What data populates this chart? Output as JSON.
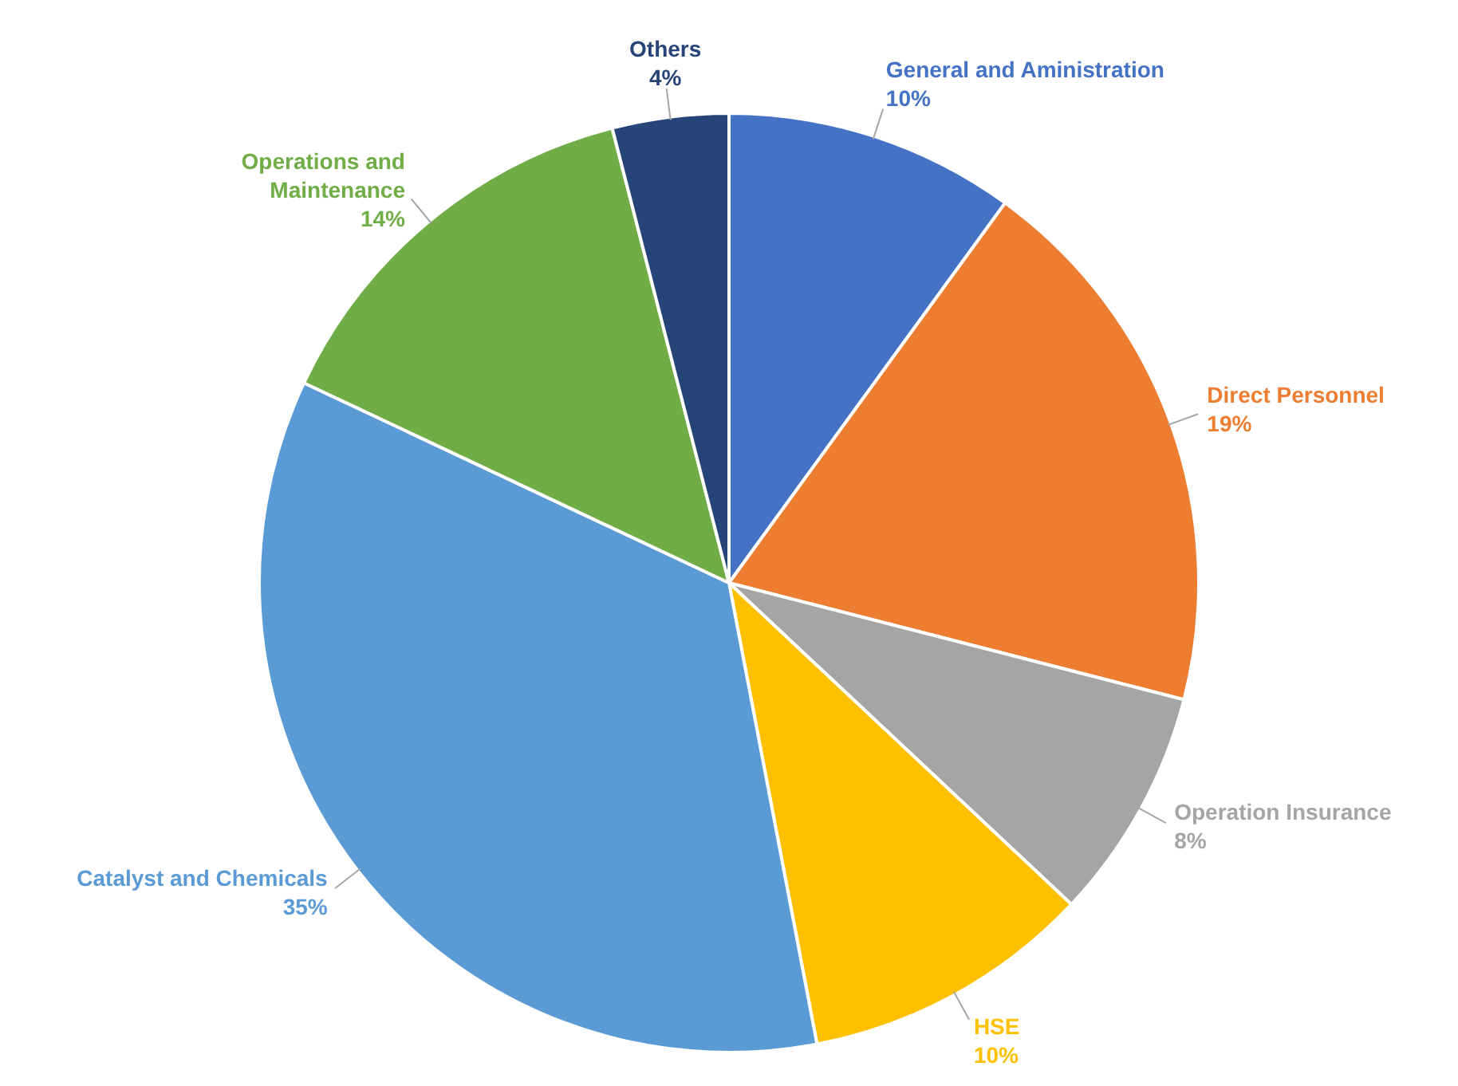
{
  "chart_data": {
    "type": "pie",
    "categories": [
      "General and Aministration",
      "Direct Personnel",
      "Operation Insurance",
      "HSE",
      "Catalyst and Chemicals",
      "Operations and Maintenance",
      "Others"
    ],
    "values": [
      10,
      19,
      8,
      10,
      35,
      14,
      4
    ],
    "value_labels": [
      "10%",
      "19%",
      "8%",
      "10%",
      "35%",
      "14%",
      "4%"
    ],
    "colors": [
      "#4472c4",
      "#ed7d31",
      "#a5a5a5",
      "#ffc000",
      "#5b9bd5",
      "#70ad47",
      "#264478"
    ],
    "legend": false
  }
}
